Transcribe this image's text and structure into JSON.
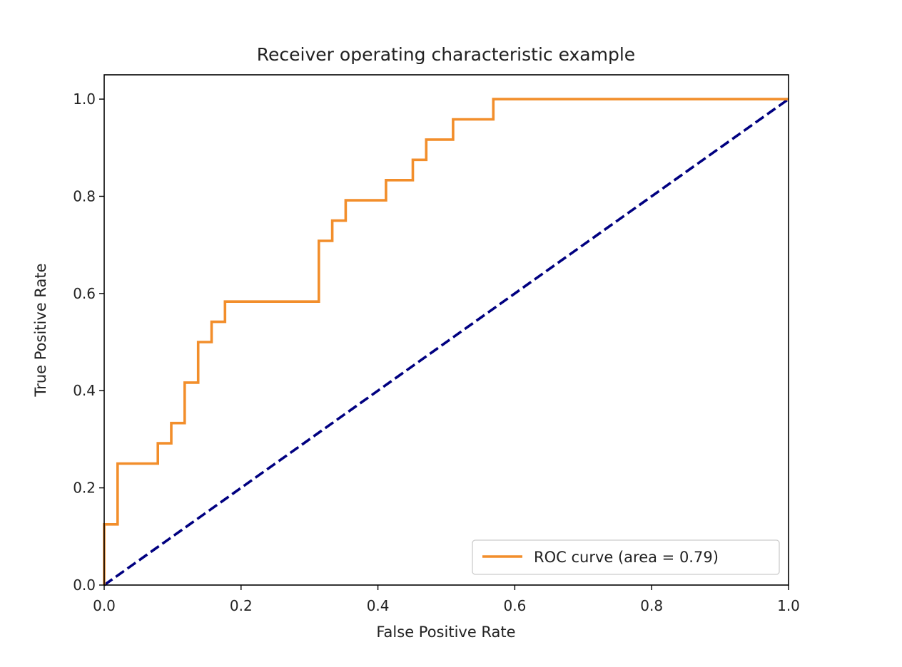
{
  "chart_data": {
    "type": "line",
    "title": "Receiver operating characteristic example",
    "xlabel": "False Positive Rate",
    "ylabel": "True Positive Rate",
    "xlim": [
      0.0,
      1.0
    ],
    "ylim": [
      0.0,
      1.05
    ],
    "xticks": [
      0.0,
      0.2,
      0.4,
      0.6,
      0.8,
      1.0
    ],
    "xtick_labels": [
      "0.0",
      "0.2",
      "0.4",
      "0.6",
      "0.8",
      "1.0"
    ],
    "yticks": [
      0.0,
      0.2,
      0.4,
      0.6,
      0.8,
      1.0
    ],
    "ytick_labels": [
      "0.0",
      "0.2",
      "0.4",
      "0.6",
      "0.8",
      "1.0"
    ],
    "grid": false,
    "legend_position": "lower right",
    "series": [
      {
        "name": "ROC curve (area = 0.79)",
        "style": "solid",
        "color": "#f28e2b",
        "x": [
          0.0,
          0.0,
          0.0196,
          0.0196,
          0.0784,
          0.0784,
          0.098,
          0.098,
          0.1176,
          0.1176,
          0.1373,
          0.1373,
          0.1569,
          0.1569,
          0.1765,
          0.1765,
          0.3137,
          0.3137,
          0.3333,
          0.3333,
          0.3529,
          0.3529,
          0.4118,
          0.4118,
          0.451,
          0.451,
          0.4706,
          0.4706,
          0.5098,
          0.5098,
          0.5686,
          0.5686,
          1.0
        ],
        "y": [
          0.0,
          0.125,
          0.125,
          0.25,
          0.25,
          0.2917,
          0.2917,
          0.3333,
          0.3333,
          0.4167,
          0.4167,
          0.5,
          0.5,
          0.5417,
          0.5417,
          0.5833,
          0.5833,
          0.7083,
          0.7083,
          0.75,
          0.75,
          0.7917,
          0.7917,
          0.8333,
          0.8333,
          0.875,
          0.875,
          0.9167,
          0.9167,
          0.9583,
          0.9583,
          1.0,
          1.0
        ]
      },
      {
        "style": "dashed",
        "color": "#000080",
        "x": [
          0.0,
          1.0
        ],
        "y": [
          0.0,
          1.0
        ]
      }
    ]
  }
}
